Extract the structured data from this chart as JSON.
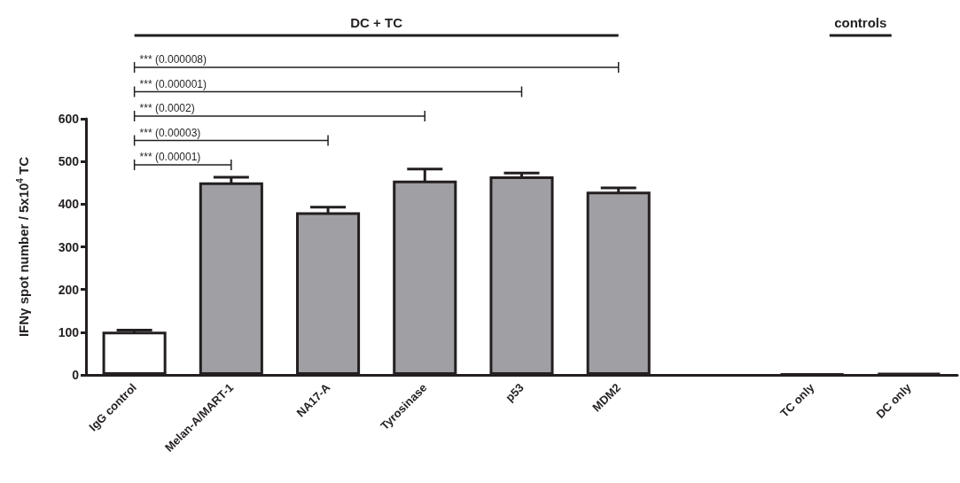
{
  "chart_data": {
    "type": "bar",
    "ylabel": "IFNγ spot number / 5x10$^{4}$ TC",
    "categories": [
      "IgG control",
      "Melan-A/MART-1",
      "NA17-A",
      "Tyrosinase",
      "p53",
      "MDM2",
      null,
      "TC only",
      "DC only"
    ],
    "values": [
      101,
      451,
      381,
      455,
      465,
      429,
      null,
      2,
      4
    ],
    "errors": [
      4,
      12,
      12,
      27,
      8,
      9,
      null,
      null,
      null
    ],
    "colors": [
      "#ffffff",
      "#a09fa4",
      "#a09fa4",
      "#a09fa4",
      "#a09fa4",
      "#a09fa4",
      "#a09fa4",
      "#231f20",
      "#231f20"
    ],
    "ylim": [
      0,
      600
    ],
    "yticks": [
      0,
      100,
      200,
      300,
      400,
      500,
      600
    ],
    "grid": false,
    "annotations": [
      "DC + TC",
      "controls",
      "*** (0.000008)",
      "*** (0.000001)",
      "*** (0.0002)",
      "*** (0.00003)",
      "*** (0.00001)"
    ]
  }
}
